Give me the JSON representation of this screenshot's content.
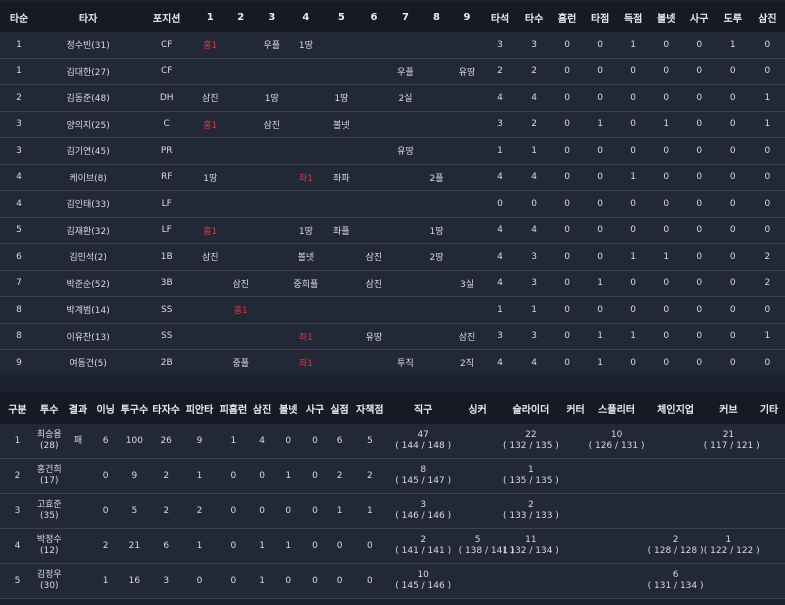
{
  "batting": {
    "headers": [
      "타순",
      "타자",
      "포지션",
      "1",
      "2",
      "3",
      "4",
      "5",
      "6",
      "7",
      "8",
      "9",
      "타석",
      "타수",
      "홈런",
      "타점",
      "득점",
      "볼넷",
      "사구",
      "도루",
      "삼진"
    ],
    "rows": [
      {
        "order": "1",
        "name": "정수빈(31)",
        "pos": "CF",
        "inn": [
          "홈1",
          "",
          "우플",
          "1땅",
          "",
          "",
          "",
          "",
          ""
        ],
        "stats": [
          "3",
          "3",
          "0",
          "0",
          "1",
          "0",
          "0",
          "1",
          "0"
        ]
      },
      {
        "order": "1",
        "name": "김대한(27)",
        "pos": "CF",
        "inn": [
          "",
          "",
          "",
          "",
          "",
          "",
          "우플",
          "",
          "유땅"
        ],
        "stats": [
          "2",
          "2",
          "0",
          "0",
          "0",
          "0",
          "0",
          "0",
          "0"
        ]
      },
      {
        "order": "2",
        "name": "김동준(48)",
        "pos": "DH",
        "inn": [
          "삼진",
          "",
          "1땅",
          "",
          "1땅",
          "",
          "2실",
          "",
          ""
        ],
        "stats": [
          "4",
          "4",
          "0",
          "0",
          "0",
          "0",
          "0",
          "0",
          "1"
        ]
      },
      {
        "order": "3",
        "name": "양의지(25)",
        "pos": "C",
        "inn": [
          "홈1",
          "",
          "삼진",
          "",
          "볼넷",
          "",
          "",
          "",
          ""
        ],
        "stats": [
          "3",
          "2",
          "0",
          "1",
          "0",
          "1",
          "0",
          "0",
          "1"
        ]
      },
      {
        "order": "3",
        "name": "김기연(45)",
        "pos": "PR",
        "inn": [
          "",
          "",
          "",
          "",
          "",
          "",
          "유땅",
          "",
          ""
        ],
        "stats": [
          "1",
          "1",
          "0",
          "0",
          "0",
          "0",
          "0",
          "0",
          "0"
        ]
      },
      {
        "order": "4",
        "name": "케이브(8)",
        "pos": "RF",
        "inn": [
          "1땅",
          "",
          "",
          "좌1",
          "좌파",
          "",
          "",
          "2플",
          ""
        ],
        "stats": [
          "4",
          "4",
          "0",
          "0",
          "1",
          "0",
          "0",
          "0",
          "0"
        ]
      },
      {
        "order": "4",
        "name": "김인태(33)",
        "pos": "LF",
        "inn": [
          "",
          "",
          "",
          "",
          "",
          "",
          "",
          "",
          ""
        ],
        "stats": [
          "0",
          "0",
          "0",
          "0",
          "0",
          "0",
          "0",
          "0",
          "0"
        ]
      },
      {
        "order": "5",
        "name": "김재환(32)",
        "pos": "LF",
        "inn": [
          "홈1",
          "",
          "",
          "1땅",
          "좌플",
          "",
          "",
          "1땅",
          ""
        ],
        "stats": [
          "4",
          "4",
          "0",
          "0",
          "0",
          "0",
          "0",
          "0",
          "0"
        ]
      },
      {
        "order": "6",
        "name": "김민석(2)",
        "pos": "1B",
        "inn": [
          "삼진",
          "",
          "",
          "볼넷",
          "",
          "삼진",
          "",
          "2땅",
          ""
        ],
        "stats": [
          "4",
          "3",
          "0",
          "0",
          "1",
          "1",
          "0",
          "0",
          "2"
        ]
      },
      {
        "order": "7",
        "name": "박준순(52)",
        "pos": "3B",
        "inn": [
          "",
          "삼진",
          "",
          "중희플",
          "",
          "삼진",
          "",
          "",
          "3실"
        ],
        "stats": [
          "4",
          "3",
          "0",
          "1",
          "0",
          "0",
          "0",
          "0",
          "2"
        ]
      },
      {
        "order": "8",
        "name": "박계범(14)",
        "pos": "SS",
        "inn": [
          "",
          "홈1",
          "",
          "",
          "",
          "",
          "",
          "",
          ""
        ],
        "stats": [
          "1",
          "1",
          "0",
          "0",
          "0",
          "0",
          "0",
          "0",
          "0"
        ]
      },
      {
        "order": "8",
        "name": "이유찬(13)",
        "pos": "SS",
        "inn": [
          "",
          "",
          "",
          "좌1",
          "",
          "유땅",
          "",
          "",
          "삼진"
        ],
        "stats": [
          "3",
          "3",
          "0",
          "1",
          "1",
          "0",
          "0",
          "0",
          "1"
        ]
      },
      {
        "order": "9",
        "name": "여동건(5)",
        "pos": "2B",
        "inn": [
          "",
          "중플",
          "",
          "좌1",
          "",
          "",
          "투직",
          "",
          "2직"
        ],
        "stats": [
          "4",
          "4",
          "0",
          "1",
          "0",
          "0",
          "0",
          "0",
          "0"
        ]
      }
    ]
  },
  "pitching": {
    "headers": [
      "구분",
      "투수",
      "결과",
      "이닝",
      "투구수",
      "타자수",
      "피안타",
      "피홈런",
      "삼진",
      "볼넷",
      "사구",
      "실점",
      "자책점",
      "직구",
      "싱커",
      "슬라이더",
      "커터",
      "스플리터",
      "체인지업",
      "커브",
      "기타"
    ],
    "rows": [
      {
        "cells": [
          "1",
          "최승용\n(28)",
          "패",
          "6",
          "100",
          "26",
          "9",
          "1",
          "4",
          "0",
          "0",
          "6",
          "5",
          "47\n( 144 / 148 )",
          "",
          "22\n( 132 / 135 )",
          "",
          "10\n( 126 / 131 )",
          "",
          "21\n( 117 / 121 )",
          ""
        ]
      },
      {
        "cells": [
          "2",
          "홍건희\n(17)",
          "",
          "0",
          "9",
          "2",
          "1",
          "0",
          "0",
          "1",
          "0",
          "2",
          "2",
          "8\n( 145 / 147 )",
          "",
          "1\n( 135 / 135 )",
          "",
          "",
          "",
          "",
          ""
        ]
      },
      {
        "cells": [
          "3",
          "고효준\n(35)",
          "",
          "0",
          "5",
          "2",
          "2",
          "0",
          "0",
          "0",
          "0",
          "1",
          "1",
          "3\n( 146 / 146 )",
          "",
          "2\n( 133 / 133 )",
          "",
          "",
          "",
          "",
          ""
        ]
      },
      {
        "cells": [
          "4",
          "박정수\n(12)",
          "",
          "2",
          "21",
          "6",
          "1",
          "0",
          "1",
          "1",
          "0",
          "0",
          "0",
          "2\n( 141 / 141 )",
          "5\n( 138 / 141 )",
          "11\n( 132 / 134 )",
          "",
          "",
          "2\n( 128 / 128 )",
          "1\n( 122 / 122 )",
          ""
        ]
      },
      {
        "cells": [
          "5",
          "김정우\n(30)",
          "",
          "1",
          "16",
          "3",
          "0",
          "0",
          "1",
          "0",
          "0",
          "0",
          "0",
          "10\n( 145 / 146 )",
          "",
          "",
          "",
          "",
          "6\n( 131 / 134 )",
          "",
          ""
        ]
      }
    ]
  },
  "hit_color": "#e4343c"
}
